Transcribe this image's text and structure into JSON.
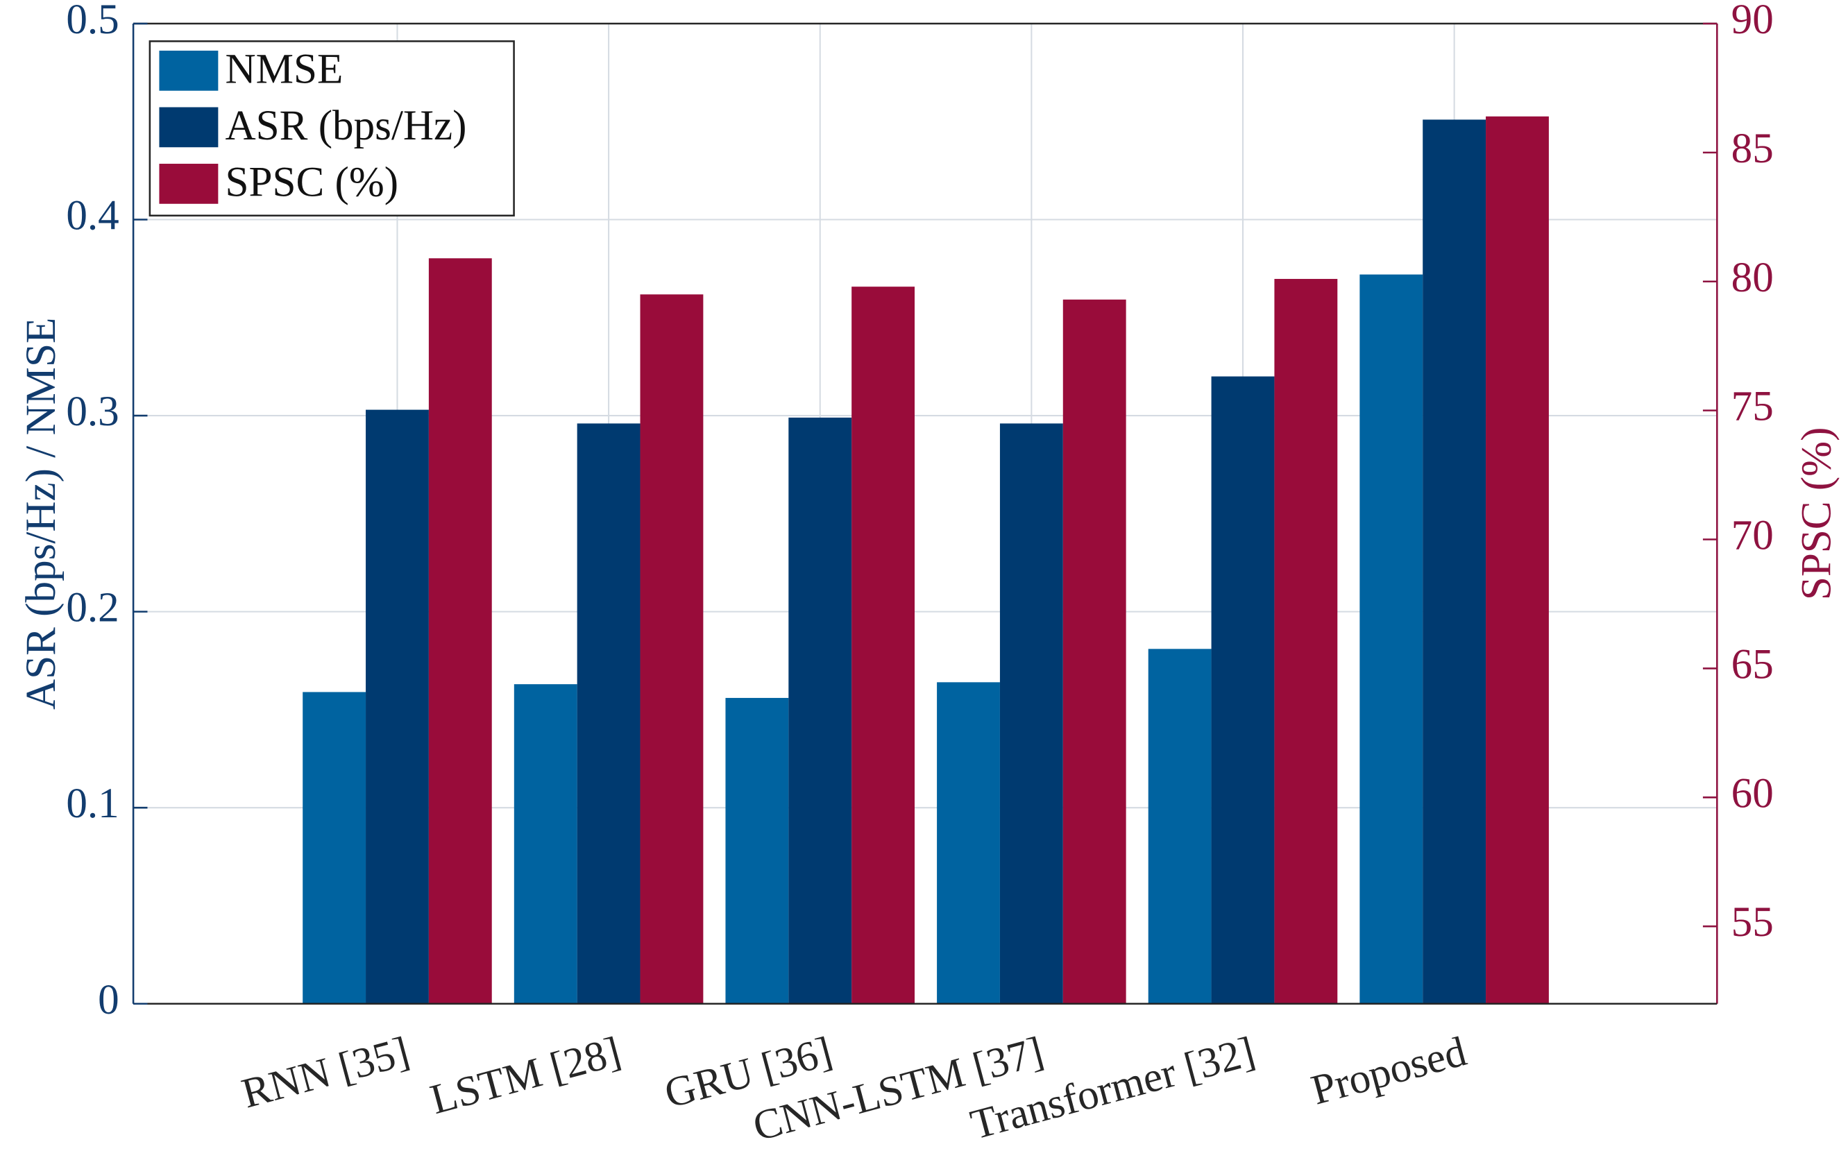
{
  "chart_data": {
    "type": "bar",
    "categories": [
      "RNN [35]",
      "LSTM [28]",
      "GRU [36]",
      "CNN-LSTM [37]",
      "Transformer [32]",
      "Proposed"
    ],
    "series": [
      {
        "name": "NMSE",
        "color": "#0063a0",
        "values": [
          0.159,
          0.163,
          0.156,
          0.164,
          0.181,
          0.372
        ]
      },
      {
        "name": "ASR (bps/Hz)",
        "color": "#003a70",
        "values": [
          0.303,
          0.296,
          0.299,
          0.296,
          0.32,
          0.451
        ]
      },
      {
        "name": "SPSC (%)",
        "color": "#990c3a",
        "values": [
          80.9,
          79.5,
          79.8,
          79.3,
          80.1,
          86.4
        ],
        "axis": "y2"
      }
    ],
    "ylabel": "ASR (bps/Hz) / NMSE",
    "y2label": "SPSC (%)",
    "ylim": [
      0,
      0.5
    ],
    "yticks": [
      0,
      0.1,
      0.2,
      0.3,
      0.4,
      0.5
    ],
    "y2lim": [
      52,
      90
    ],
    "y2ticks": [
      55,
      60,
      65,
      70,
      75,
      80,
      85,
      90
    ],
    "ycolor": "#123c6e",
    "y2color": "#8e1240",
    "grid": true,
    "legend": "upper left"
  }
}
